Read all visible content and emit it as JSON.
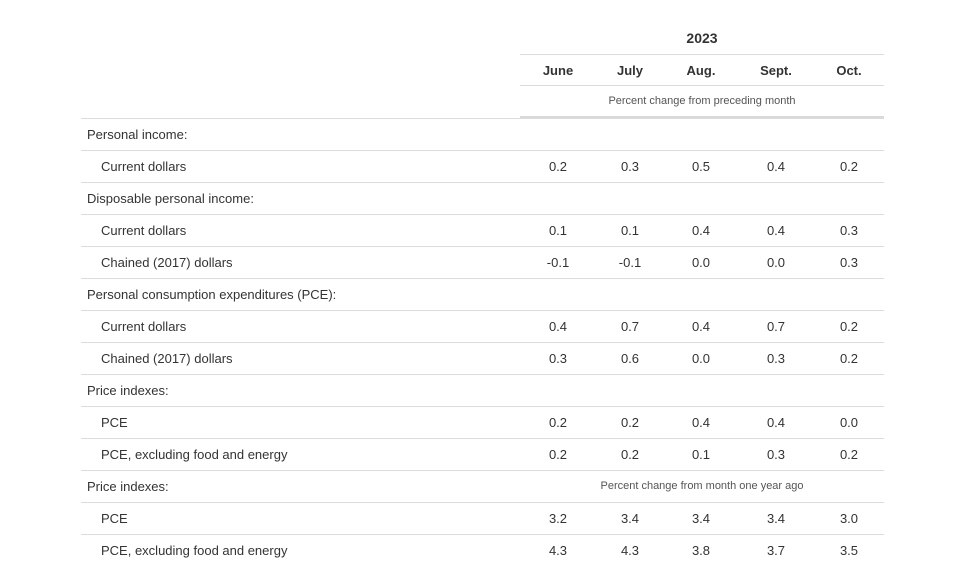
{
  "table": {
    "year": "2023",
    "months": [
      "June",
      "July",
      "Aug.",
      "Sept.",
      "Oct."
    ],
    "subheading": "Percent change from preceding month",
    "rows": [
      {
        "kind": "group",
        "label": "Personal income:",
        "values": []
      },
      {
        "kind": "item",
        "label": "Current dollars",
        "values": [
          "0.2",
          "0.3",
          "0.5",
          "0.4",
          "0.2"
        ]
      },
      {
        "kind": "group",
        "label": "Disposable personal income:",
        "values": []
      },
      {
        "kind": "item",
        "label": "Current dollars",
        "values": [
          "0.1",
          "0.1",
          "0.4",
          "0.4",
          "0.3"
        ]
      },
      {
        "kind": "item",
        "label": "Chained (2017) dollars",
        "values": [
          "-0.1",
          "-0.1",
          "0.0",
          "0.0",
          "0.3"
        ]
      },
      {
        "kind": "group",
        "label": "Personal consumption expenditures (PCE):",
        "values": []
      },
      {
        "kind": "item",
        "label": "Current dollars",
        "values": [
          "0.4",
          "0.7",
          "0.4",
          "0.7",
          "0.2"
        ]
      },
      {
        "kind": "item",
        "label": "Chained (2017) dollars",
        "values": [
          "0.3",
          "0.6",
          "0.0",
          "0.3",
          "0.2"
        ]
      },
      {
        "kind": "group",
        "label": "Price indexes:",
        "values": []
      },
      {
        "kind": "item",
        "label": "PCE",
        "values": [
          "0.2",
          "0.2",
          "0.4",
          "0.4",
          "0.0"
        ]
      },
      {
        "kind": "item",
        "label": "PCE, excluding food and energy",
        "values": [
          "0.2",
          "0.2",
          "0.1",
          "0.3",
          "0.2"
        ]
      },
      {
        "kind": "group",
        "label": "Price indexes:",
        "note": "Percent change from month one year ago",
        "values": []
      },
      {
        "kind": "item",
        "label": "PCE",
        "values": [
          "3.2",
          "3.4",
          "3.4",
          "3.4",
          "3.0"
        ]
      },
      {
        "kind": "item",
        "label": "PCE, excluding food and energy",
        "values": [
          "4.3",
          "4.3",
          "3.8",
          "3.7",
          "3.5"
        ]
      }
    ]
  }
}
